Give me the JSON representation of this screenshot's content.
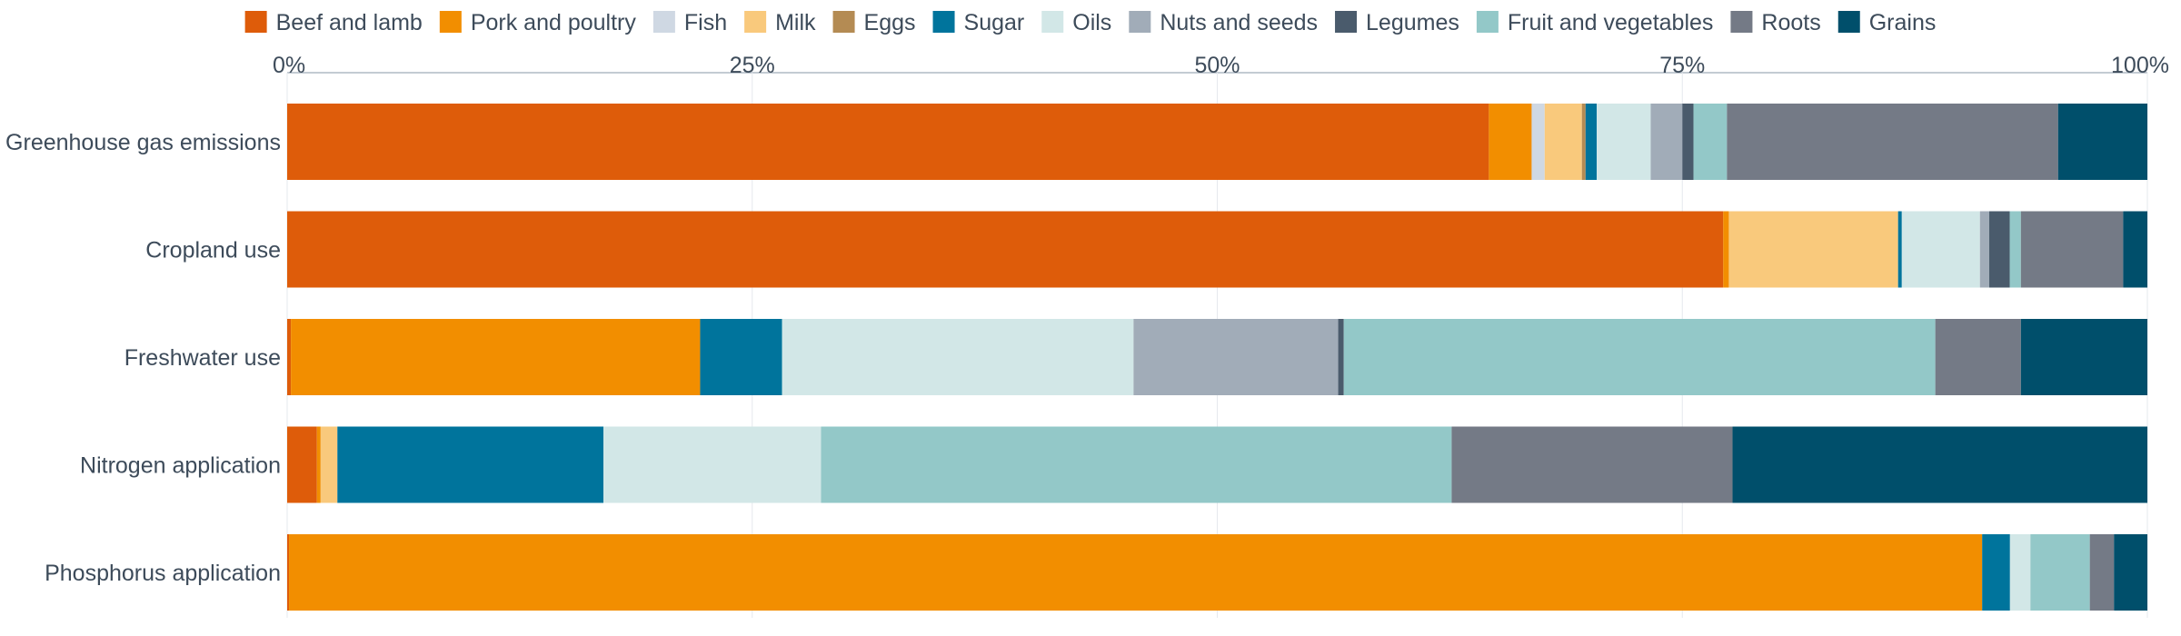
{
  "chart_data": {
    "type": "bar",
    "orientation": "horizontal",
    "stacked": true,
    "normalized": true,
    "x_axis_position": "top",
    "xlim": [
      0,
      100
    ],
    "x_ticks": [
      "0%",
      "25%",
      "50%",
      "75%",
      "100%"
    ],
    "grid": true,
    "legend_position": "top",
    "title": "",
    "xlabel": "",
    "ylabel": "",
    "categories": [
      "Greenhouse gas emissions",
      "Cropland use",
      "Freshwater use",
      "Nitrogen application",
      "Phosphorus application"
    ],
    "series": [
      {
        "name": "Beef and lamb",
        "color": "#de5c0a",
        "values": [
          64.6,
          77.2,
          0.2,
          1.6,
          0.1
        ]
      },
      {
        "name": "Pork and poultry",
        "color": "#f28e00",
        "values": [
          2.3,
          0.3,
          22.0,
          0.2,
          91.2
        ]
      },
      {
        "name": "Fish",
        "color": "#cfd8e3",
        "values": [
          0.7,
          0.0,
          0.0,
          0.0,
          0.0
        ]
      },
      {
        "name": "Milk",
        "color": "#f9c97c",
        "values": [
          2.0,
          9.1,
          0.0,
          0.9,
          0.0
        ]
      },
      {
        "name": "Eggs",
        "color": "#b48b53",
        "values": [
          0.2,
          0.0,
          0.0,
          0.0,
          0.0
        ]
      },
      {
        "name": "Sugar",
        "color": "#00749c",
        "values": [
          0.6,
          0.2,
          4.4,
          14.3,
          1.5
        ]
      },
      {
        "name": "Oils",
        "color": "#d2e7e7",
        "values": [
          2.9,
          4.2,
          18.9,
          11.7,
          1.1
        ]
      },
      {
        "name": "Nuts and seeds",
        "color": "#a1acb8",
        "values": [
          1.7,
          0.5,
          11.0,
          0.0,
          0.0
        ]
      },
      {
        "name": "Legumes",
        "color": "#4a5b6c",
        "values": [
          0.6,
          1.1,
          0.3,
          0.0,
          0.0
        ]
      },
      {
        "name": "Fruit and vegetables",
        "color": "#93c8c8",
        "values": [
          1.8,
          0.6,
          31.8,
          33.9,
          3.2
        ]
      },
      {
        "name": "Roots",
        "color": "#747a86",
        "values": [
          17.8,
          5.5,
          4.6,
          15.1,
          1.3
        ]
      },
      {
        "name": "Grains",
        "color": "#004f6b",
        "values": [
          4.8,
          1.3,
          6.8,
          22.3,
          1.8
        ]
      }
    ]
  }
}
